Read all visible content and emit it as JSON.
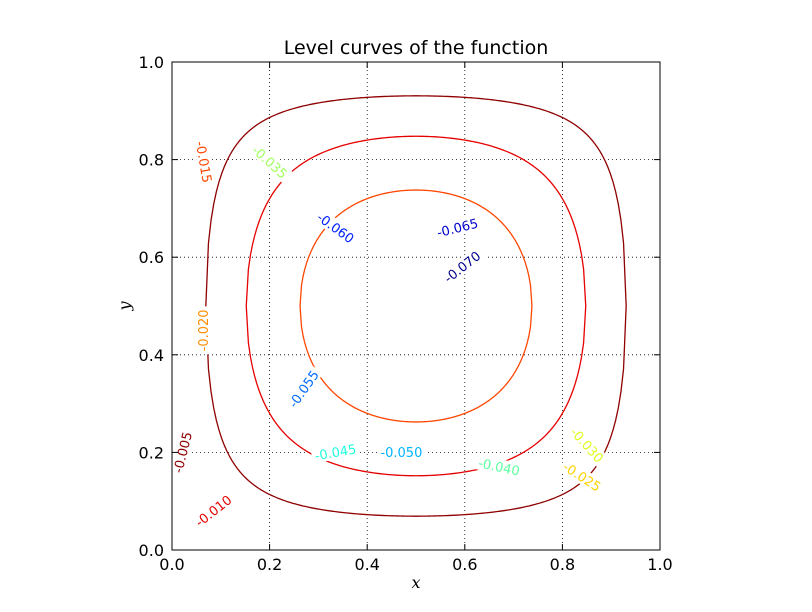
{
  "chart_data": {
    "type": "contour",
    "title": "Level curves of the function",
    "xlabel": "x",
    "ylabel": "y",
    "xlim": [
      0.0,
      1.0
    ],
    "ylim": [
      0.0,
      1.0
    ],
    "x_ticks": [
      "0.0",
      "0.2",
      "0.4",
      "0.6",
      "0.8",
      "1.0"
    ],
    "y_ticks": [
      "0.0",
      "0.2",
      "0.4",
      "0.6",
      "0.8",
      "1.0"
    ],
    "grid": "dotted",
    "colormap": "jet",
    "levels": [
      {
        "value": -0.07,
        "label": "-0.070",
        "color": "#00008f"
      },
      {
        "value": -0.065,
        "label": "-0.065",
        "color": "#0000cd"
      },
      {
        "value": -0.06,
        "label": "-0.060",
        "color": "#0020ff"
      },
      {
        "value": -0.055,
        "label": "-0.055",
        "color": "#006aff"
      },
      {
        "value": -0.05,
        "label": "-0.050",
        "color": "#00b4ff"
      },
      {
        "value": -0.045,
        "label": "-0.045",
        "color": "#1fffdf"
      },
      {
        "value": -0.04,
        "label": "-0.040",
        "color": "#5fff9f"
      },
      {
        "value": -0.035,
        "label": "-0.035",
        "color": "#a0ff5f"
      },
      {
        "value": -0.03,
        "label": "-0.030",
        "color": "#dfff1f"
      },
      {
        "value": -0.025,
        "label": "-0.025",
        "color": "#ffd200"
      },
      {
        "value": -0.02,
        "label": "-0.020",
        "color": "#ff8c00"
      },
      {
        "value": -0.015,
        "label": "-0.015",
        "color": "#ff4600"
      },
      {
        "value": -0.01,
        "label": "-0.010",
        "color": "#e60000"
      },
      {
        "value": -0.005,
        "label": "-0.005",
        "color": "#8f0000"
      }
    ],
    "contour_labels": [
      {
        "label": "-0.070",
        "x": 0.595,
        "y": 0.58,
        "angle": 38
      },
      {
        "label": "-0.065",
        "x": 0.585,
        "y": 0.66,
        "angle": 14
      },
      {
        "label": "-0.060",
        "x": 0.335,
        "y": 0.66,
        "angle": -36
      },
      {
        "label": "-0.055",
        "x": 0.27,
        "y": 0.33,
        "angle": 55
      },
      {
        "label": "-0.050",
        "x": 0.47,
        "y": 0.2,
        "angle": 0
      },
      {
        "label": "-0.045",
        "x": 0.335,
        "y": 0.2,
        "angle": 10
      },
      {
        "label": "-0.040",
        "x": 0.67,
        "y": 0.17,
        "angle": -12
      },
      {
        "label": "-0.035",
        "x": 0.2,
        "y": 0.795,
        "angle": -42
      },
      {
        "label": "-0.030",
        "x": 0.85,
        "y": 0.215,
        "angle": -48
      },
      {
        "label": "-0.025",
        "x": 0.84,
        "y": 0.15,
        "angle": -33
      },
      {
        "label": "-0.020",
        "x": 0.065,
        "y": 0.45,
        "angle": 90
      },
      {
        "label": "-0.015",
        "x": 0.065,
        "y": 0.795,
        "angle": -80
      },
      {
        "label": "-0.010",
        "x": 0.085,
        "y": 0.08,
        "angle": 38
      },
      {
        "label": "-0.005",
        "x": 0.022,
        "y": 0.2,
        "angle": 76
      }
    ]
  }
}
